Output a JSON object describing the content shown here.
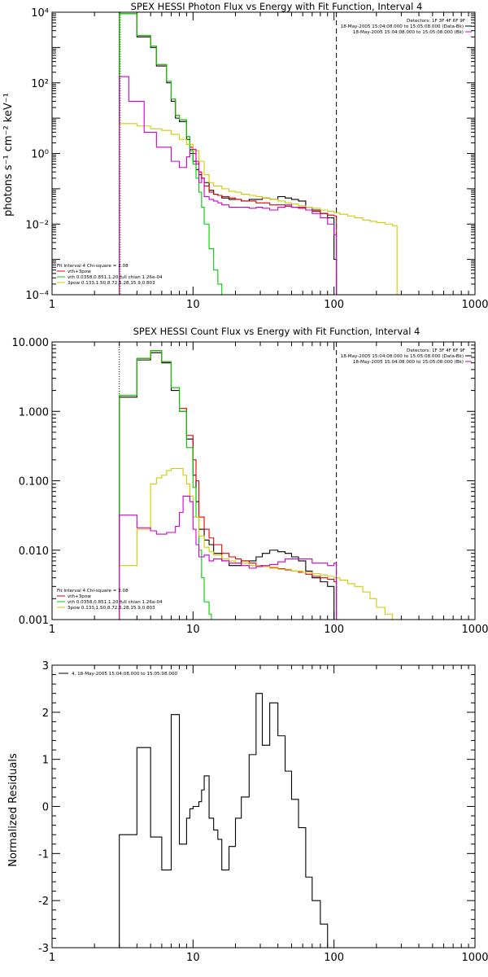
{
  "chart_data": [
    {
      "type": "line",
      "step": true,
      "title": "SPEX HESSI Photon Flux vs Energy with Fit Function, Interval 4",
      "ylabel": "photons s⁻¹ cm⁻² keV⁻¹",
      "xscale": "log",
      "yscale": "log",
      "xlim": [
        1,
        1000
      ],
      "ylim": [
        0.0001,
        10000
      ],
      "xticks": [
        1,
        10,
        100,
        1000
      ],
      "xtick_labels": [
        "1",
        "10",
        "100",
        "1000"
      ],
      "yticks": [
        0.0001,
        0.01,
        1,
        100,
        10000
      ],
      "ytick_labels": [
        "10⁻⁴",
        "10⁻²",
        "10⁰",
        "10²",
        "10⁴"
      ],
      "vlines": [
        {
          "x": 3,
          "style": "dotted",
          "color": "#000000"
        },
        {
          "x": 3,
          "style": "dotted",
          "color": "#ff8c00"
        },
        {
          "x": 3,
          "style": "dotted",
          "color": "#00b000"
        },
        {
          "x": 104,
          "style": "dashed",
          "color": "#000000"
        }
      ],
      "legend_top": {
        "header": "Detectors: 1F 3F 4F 6F 9F",
        "entries": [
          {
            "label": "18-May-2005 15:04:08.000 to 15:05:08.000 (Data-Bk)",
            "color": "#000000"
          },
          {
            "label": "18-May-2005 15:04:08.000 to 15:05:08.000 (Bk)",
            "color": "#cc00cc"
          }
        ]
      },
      "legend_fit": {
        "header": "Fit Interval  4    Chi-square = 2.08",
        "entries": [
          {
            "label": "vth+3pow",
            "color": "#dd0000"
          },
          {
            "label": "vth 0.0358,0.851,1.20  full chian 1.26e-04",
            "color": "#00cc00"
          },
          {
            "label": "3pow 0.133,1.50,8.72,5.28,15.9,0.803",
            "color": "#cccc00"
          }
        ]
      },
      "series": [
        {
          "color": "#000000",
          "edges": [
            3,
            3.5,
            4,
            4.5,
            5,
            5.5,
            6,
            6.5,
            7,
            7.5,
            8,
            8.5,
            9,
            9.5,
            10,
            10.5,
            11,
            11.5,
            12,
            13,
            14,
            15,
            16,
            18,
            20,
            22,
            25,
            28,
            31,
            35,
            40,
            45,
            50,
            56,
            63,
            70,
            80,
            90,
            100,
            104
          ],
          "values": [
            9000,
            9000,
            2000,
            2000,
            1000,
            300,
            300,
            100,
            30,
            10,
            8,
            8,
            2.5,
            1,
            0.6,
            0.35,
            0.25,
            0.2,
            0.15,
            0.09,
            0.07,
            0.065,
            0.055,
            0.05,
            0.05,
            0.045,
            0.05,
            0.05,
            0.055,
            0.05,
            0.06,
            0.055,
            0.05,
            0.045,
            0.03,
            0.025,
            0.02,
            0.015,
            0.001
          ]
        },
        {
          "color": "#dd0000",
          "edges": [
            3,
            3.5,
            4,
            4.5,
            5,
            5.5,
            6,
            6.5,
            7,
            7.5,
            8,
            8.5,
            9,
            9.5,
            10,
            10.5,
            11,
            11.5,
            12,
            13,
            14,
            15,
            16,
            18,
            20,
            22,
            25,
            28,
            31,
            35,
            40,
            45,
            50,
            56,
            63,
            70,
            80,
            90,
            100,
            104
          ],
          "values": [
            9000,
            9000,
            2200,
            2200,
            1100,
            330,
            330,
            110,
            35,
            12,
            9,
            9,
            3,
            1.5,
            1.0,
            0.6,
            0.3,
            0.2,
            0.12,
            0.08,
            0.07,
            0.065,
            0.06,
            0.055,
            0.05,
            0.045,
            0.045,
            0.04,
            0.04,
            0.035,
            0.035,
            0.032,
            0.03,
            0.028,
            0.025,
            0.023,
            0.02,
            0.018,
            0.017
          ]
        },
        {
          "color": "#00cc00",
          "edges": [
            3,
            3.5,
            4,
            4.5,
            5,
            5.5,
            6,
            6.5,
            7,
            7.5,
            8,
            8.5,
            9,
            9.5,
            10,
            10.5,
            11,
            11.5,
            12,
            13,
            14,
            15,
            16
          ],
          "values": [
            9000,
            9000,
            2200,
            2200,
            1100,
            330,
            330,
            110,
            35,
            12,
            9,
            9,
            3,
            1.2,
            0.5,
            0.2,
            0.08,
            0.03,
            0.01,
            0.002,
            0.0005,
            0.0002
          ]
        },
        {
          "color": "#cccc00",
          "edges": [
            3,
            4,
            5,
            6,
            7,
            8,
            9,
            10,
            11,
            12,
            13,
            14,
            16,
            18,
            20,
            22,
            25,
            28,
            31,
            35,
            40,
            45,
            50,
            56,
            63,
            70,
            80,
            90,
            100,
            110,
            125,
            140,
            160,
            180,
            200,
            230,
            260,
            280
          ],
          "values": [
            7,
            6,
            5,
            4.5,
            3.5,
            2.5,
            1.8,
            1.2,
            0.6,
            0.25,
            0.15,
            0.12,
            0.1,
            0.085,
            0.08,
            0.07,
            0.065,
            0.06,
            0.055,
            0.05,
            0.045,
            0.04,
            0.037,
            0.033,
            0.03,
            0.028,
            0.025,
            0.023,
            0.021,
            0.019,
            0.017,
            0.015,
            0.013,
            0.012,
            0.011,
            0.01,
            0.009
          ]
        },
        {
          "color": "#cc00cc",
          "edges": [
            3,
            3.5,
            4,
            4.5,
            5,
            5.5,
            6,
            6.5,
            7,
            7.5,
            8,
            8.5,
            9,
            9.5,
            10,
            10.5,
            11,
            11.5,
            12,
            13,
            14,
            15,
            16,
            18,
            20,
            22,
            25,
            28,
            31,
            35,
            40,
            45,
            50,
            56,
            63,
            70,
            80,
            90,
            100,
            104
          ],
          "values": [
            150,
            30,
            30,
            4,
            4,
            1.5,
            1.5,
            1.5,
            0.6,
            0.6,
            0.4,
            0.4,
            0.8,
            1.3,
            1.3,
            0.5,
            0.15,
            0.2,
            0.06,
            0.05,
            0.045,
            0.04,
            0.035,
            0.03,
            0.03,
            0.03,
            0.028,
            0.03,
            0.028,
            0.025,
            0.03,
            0.035,
            0.03,
            0.03,
            0.025,
            0.02,
            0.015,
            0.01,
            0.005
          ]
        }
      ]
    },
    {
      "type": "line",
      "step": true,
      "title": "SPEX HESSI Count Flux vs Energy with Fit Function, Interval 4",
      "ylabel": "",
      "xscale": "log",
      "yscale": "log",
      "xlim": [
        1,
        1000
      ],
      "ylim": [
        0.001,
        10
      ],
      "xticks": [
        1,
        10,
        100,
        1000
      ],
      "xtick_labels": [
        "1",
        "10",
        "100",
        "1000"
      ],
      "yticks": [
        0.001,
        0.01,
        0.1,
        1,
        10
      ],
      "ytick_labels": [
        "0.001",
        "0.010",
        "0.100",
        "1.000",
        "10.000"
      ],
      "vlines": [
        {
          "x": 3,
          "style": "dotted",
          "color": "#000000"
        },
        {
          "x": 104,
          "style": "dashed",
          "color": "#000000"
        }
      ],
      "legend_top": {
        "header": "Detectors: 1F 3F 4F 6F 9F",
        "entries": [
          {
            "label": "18-May-2005 15:04:08.000 to 15:05:08.000 (Data-Bk)",
            "color": "#000000"
          },
          {
            "label": "18-May-2005 15:04:08.000 to 15:05:08.000 (Bk)",
            "color": "#cc00cc"
          }
        ]
      },
      "legend_fit": {
        "header": "Fit Interval  4    Chi-square = 2.08",
        "entries": [
          {
            "label": "vth+3pow",
            "color": "#dd0000"
          },
          {
            "label": "vth 0.0358,0.851,1.20  full chian 1.26e-04",
            "color": "#00cc00"
          },
          {
            "label": "3pow 0.133,1.50,8.72,5.28,15.9,0.803",
            "color": "#cccc00"
          }
        ]
      },
      "series": [
        {
          "color": "#000000",
          "edges": [
            3,
            4,
            5,
            6,
            7,
            8,
            9,
            10,
            10.5,
            11,
            12,
            13,
            14,
            16,
            18,
            20,
            22,
            25,
            28,
            31,
            35,
            40,
            45,
            50,
            56,
            63,
            70,
            80,
            90,
            100,
            104
          ],
          "values": [
            1.6,
            5.5,
            7.0,
            5.0,
            2.0,
            1.0,
            0.4,
            0.12,
            0.05,
            0.02,
            0.014,
            0.012,
            0.009,
            0.007,
            0.006,
            0.006,
            0.007,
            0.007,
            0.008,
            0.009,
            0.01,
            0.0095,
            0.009,
            0.008,
            0.007,
            0.005,
            0.004,
            0.0035,
            0.003,
            0.001
          ]
        },
        {
          "color": "#dd0000",
          "edges": [
            3,
            4,
            5,
            6,
            7,
            8,
            9,
            10,
            10.5,
            11,
            12,
            13,
            14,
            16,
            18,
            20,
            22,
            25,
            28,
            31,
            35,
            40,
            45,
            50,
            56,
            63,
            70,
            80,
            90,
            100,
            104
          ],
          "values": [
            1.7,
            5.8,
            7.5,
            5.2,
            2.2,
            1.1,
            0.45,
            0.2,
            0.1,
            0.03,
            0.02,
            0.015,
            0.012,
            0.009,
            0.008,
            0.0075,
            0.007,
            0.0065,
            0.006,
            0.0058,
            0.0056,
            0.0054,
            0.0052,
            0.005,
            0.0048,
            0.0045,
            0.0042,
            0.004,
            0.0038,
            0.0035
          ]
        },
        {
          "color": "#00cc00",
          "edges": [
            3,
            4,
            5,
            6,
            7,
            8,
            9,
            10,
            10.5,
            11,
            11.5,
            12,
            13,
            13.5
          ],
          "values": [
            1.7,
            5.8,
            7.5,
            5.2,
            2.2,
            1.0,
            0.3,
            0.08,
            0.03,
            0.01,
            0.004,
            0.0018,
            0.0012
          ]
        },
        {
          "color": "#cccc00",
          "edges": [
            3,
            3.5,
            4,
            4.5,
            5,
            5.5,
            6,
            6.5,
            7,
            7.5,
            8,
            8.5,
            9,
            9.5,
            10,
            11,
            12,
            13,
            14,
            16,
            18,
            20,
            25,
            30,
            35,
            40,
            50,
            60,
            70,
            80,
            90,
            100,
            110,
            125,
            140,
            160,
            180,
            200,
            230,
            260,
            280
          ],
          "values": [
            0.006,
            0.006,
            0.02,
            0.02,
            0.09,
            0.11,
            0.12,
            0.14,
            0.15,
            0.15,
            0.15,
            0.12,
            0.09,
            0.06,
            0.03,
            0.016,
            0.011,
            0.0095,
            0.0085,
            0.0075,
            0.007,
            0.0065,
            0.006,
            0.0058,
            0.0055,
            0.0053,
            0.005,
            0.0048,
            0.0046,
            0.0044,
            0.0042,
            0.004,
            0.0037,
            0.0033,
            0.003,
            0.0025,
            0.002,
            0.0015,
            0.0012,
            0.001
          ]
        },
        {
          "color": "#cc00cc",
          "edges": [
            3,
            3.5,
            4,
            4.5,
            5,
            5.5,
            6,
            6.5,
            7,
            7.5,
            8,
            8.5,
            9,
            9.5,
            10,
            10.5,
            11,
            12,
            13,
            14,
            16,
            18,
            20,
            22,
            25,
            28,
            31,
            35,
            40,
            45,
            50,
            56,
            63,
            70,
            80,
            90,
            100,
            104
          ],
          "values": [
            0.032,
            0.032,
            0.021,
            0.021,
            0.019,
            0.017,
            0.017,
            0.018,
            0.018,
            0.022,
            0.035,
            0.06,
            0.06,
            0.05,
            0.02,
            0.012,
            0.008,
            0.0085,
            0.007,
            0.0075,
            0.007,
            0.0065,
            0.0065,
            0.006,
            0.0055,
            0.0058,
            0.006,
            0.0062,
            0.0068,
            0.0075,
            0.0075,
            0.0075,
            0.0075,
            0.0065,
            0.0065,
            0.006,
            0.0065,
            0.001
          ]
        }
      ]
    },
    {
      "type": "line",
      "step": true,
      "title": "",
      "ylabel": "Normalized Residuals",
      "xscale": "log",
      "yscale": "linear",
      "xlim": [
        1,
        1000
      ],
      "ylim": [
        -3,
        3
      ],
      "xticks": [
        1,
        10,
        100,
        1000
      ],
      "xtick_labels": [
        "1",
        "10",
        "100",
        "1000"
      ],
      "yticks": [
        -3,
        -2,
        -1,
        0,
        1,
        2,
        3
      ],
      "ytick_labels": [
        "-3",
        "-2",
        "-1",
        "0",
        "1",
        "2",
        "3"
      ],
      "legend_top": {
        "entries": [
          {
            "label": "4. 18-May-2005 15:04:08.000 to 15:05:08.000",
            "color": "#000000"
          }
        ]
      },
      "series": [
        {
          "color": "#000000",
          "edges": [
            3,
            3.5,
            4,
            4.5,
            5,
            5.5,
            6,
            6.5,
            7,
            7.5,
            8,
            8.5,
            9,
            9.5,
            10,
            10.5,
            11,
            11.5,
            12,
            13,
            14,
            15,
            16,
            18,
            20,
            22,
            25,
            28,
            31,
            35,
            40,
            45,
            50,
            56,
            63,
            70,
            80,
            90,
            100,
            105
          ],
          "values": [
            -0.6,
            -0.6,
            1.25,
            1.25,
            -0.65,
            -0.65,
            -1.35,
            -1.35,
            1.95,
            1.95,
            -0.8,
            -0.8,
            -0.25,
            -0.05,
            0,
            0,
            0.1,
            0.35,
            0.65,
            -0.25,
            -0.5,
            -0.7,
            -1.35,
            -0.85,
            -0.25,
            0.2,
            1.1,
            2.4,
            1.3,
            2.2,
            1.5,
            0.75,
            0.15,
            -0.45,
            -1.5,
            -2.0,
            -2.5,
            -3.0,
            -3.0
          ]
        }
      ]
    }
  ]
}
